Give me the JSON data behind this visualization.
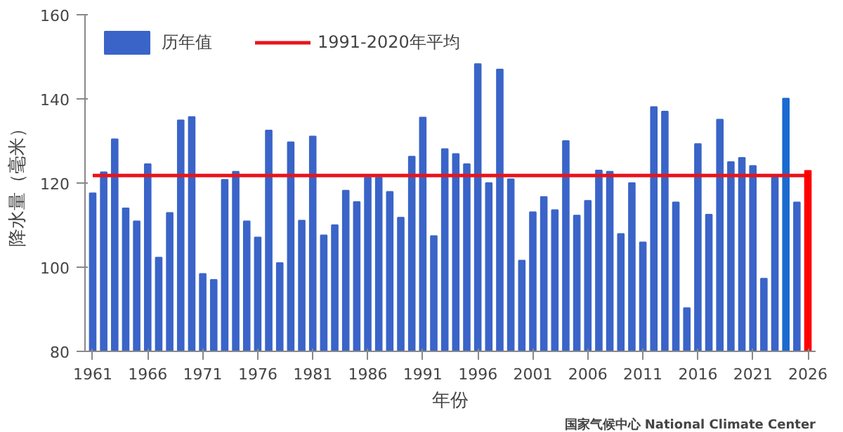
{
  "chart_data": {
    "type": "bar",
    "xlabel": "年份",
    "ylabel": "降水量（毫米）",
    "x": [
      1961,
      1962,
      1963,
      1964,
      1965,
      1966,
      1967,
      1968,
      1969,
      1970,
      1971,
      1972,
      1973,
      1974,
      1975,
      1976,
      1977,
      1978,
      1979,
      1980,
      1981,
      1982,
      1983,
      1984,
      1985,
      1986,
      1987,
      1988,
      1989,
      1990,
      1991,
      1992,
      1993,
      1994,
      1995,
      1996,
      1997,
      1998,
      1999,
      2000,
      2001,
      2002,
      2003,
      2004,
      2005,
      2006,
      2007,
      2008,
      2009,
      2010,
      2011,
      2012,
      2013,
      2014,
      2015,
      2016,
      2017,
      2018,
      2019,
      2020,
      2021,
      2022,
      2023,
      2024,
      2025
    ],
    "series": [
      {
        "name": "历年值",
        "color": "#3a64c8",
        "colors": [
          "#3a64c8",
          "#3a64c8",
          "#3a64c8",
          "#3a64c8",
          "#3a64c8",
          "#3a64c8",
          "#3a64c8",
          "#3a64c8",
          "#3a64c8",
          "#3a64c8",
          "#3a64c8",
          "#3a64c8",
          "#3a64c8",
          "#3a64c8",
          "#3a64c8",
          "#3a64c8",
          "#3a64c8",
          "#3a64c8",
          "#3a64c8",
          "#3a64c8",
          "#3a64c8",
          "#3a64c8",
          "#3a64c8",
          "#3a64c8",
          "#3a64c8",
          "#3a64c8",
          "#3a64c8",
          "#3a64c8",
          "#3a64c8",
          "#3a64c8",
          "#3a64c8",
          "#3a64c8",
          "#3a64c8",
          "#3a64c8",
          "#3a64c8",
          "#3a64c8",
          "#3a64c8",
          "#3a64c8",
          "#3a64c8",
          "#3a64c8",
          "#3a64c8",
          "#3a64c8",
          "#3a64c8",
          "#3a64c8",
          "#3a64c8",
          "#3a64c8",
          "#3a64c8",
          "#3a64c8",
          "#3a64c8",
          "#3a64c8",
          "#3a64c8",
          "#3a64c8",
          "#3a64c8",
          "#3a64c8",
          "#3a64c8",
          "#3a64c8",
          "#3a64c8",
          "#3a64c8",
          "#3a64c8",
          "#3a64c8",
          "#3a64c8",
          "#3a64c8",
          "#3a64c8",
          "#1a6ad0",
          "#3a64c8"
        ],
        "values": [
          117.6,
          122.6,
          130.4,
          114,
          110.9,
          124.5,
          102.3,
          112.9,
          134.9,
          135.7,
          98.4,
          97,
          120.8,
          122.7,
          110.9,
          107.1,
          132.5,
          101,
          129.7,
          111.1,
          131.1,
          107.6,
          110,
          118.2,
          115.5,
          121.3,
          121.3,
          117.9,
          111.8,
          126.3,
          135.6,
          107.4,
          128.1,
          126.9,
          124.5,
          148.3,
          120,
          147,
          120.9,
          101.6,
          113.1,
          116.7,
          113.6,
          130,
          112.3,
          115.8,
          123,
          122.7,
          107.9,
          120,
          105.9,
          138.1,
          137,
          115.4,
          90.3,
          129.3,
          112.5,
          135.1,
          125,
          126,
          124.1,
          97.3,
          121.4,
          140.1,
          115.4
        ]
      },
      {
        "name": "1991-2020年平均",
        "type": "line",
        "color": "#e8141c",
        "x": [
          1961,
          2025.7
        ],
        "values": [
          121.8,
          121.8
        ]
      },
      {
        "type": "bar",
        "color": "#ff0000",
        "x": [
          2026
        ],
        "values": [
          122.9
        ]
      }
    ],
    "xlim": [
      1960.3,
      2026.7
    ],
    "xticks": [
      1961,
      1966,
      1971,
      1976,
      1981,
      1986,
      1991,
      1996,
      2001,
      2006,
      2011,
      2016,
      2021,
      2026
    ],
    "ylim": [
      80,
      160
    ],
    "yticks": [
      80,
      100,
      120,
      140,
      160
    ],
    "grid": false,
    "legend": "top left",
    "annotations": [
      "国家气候中心 National Climate Center"
    ]
  }
}
